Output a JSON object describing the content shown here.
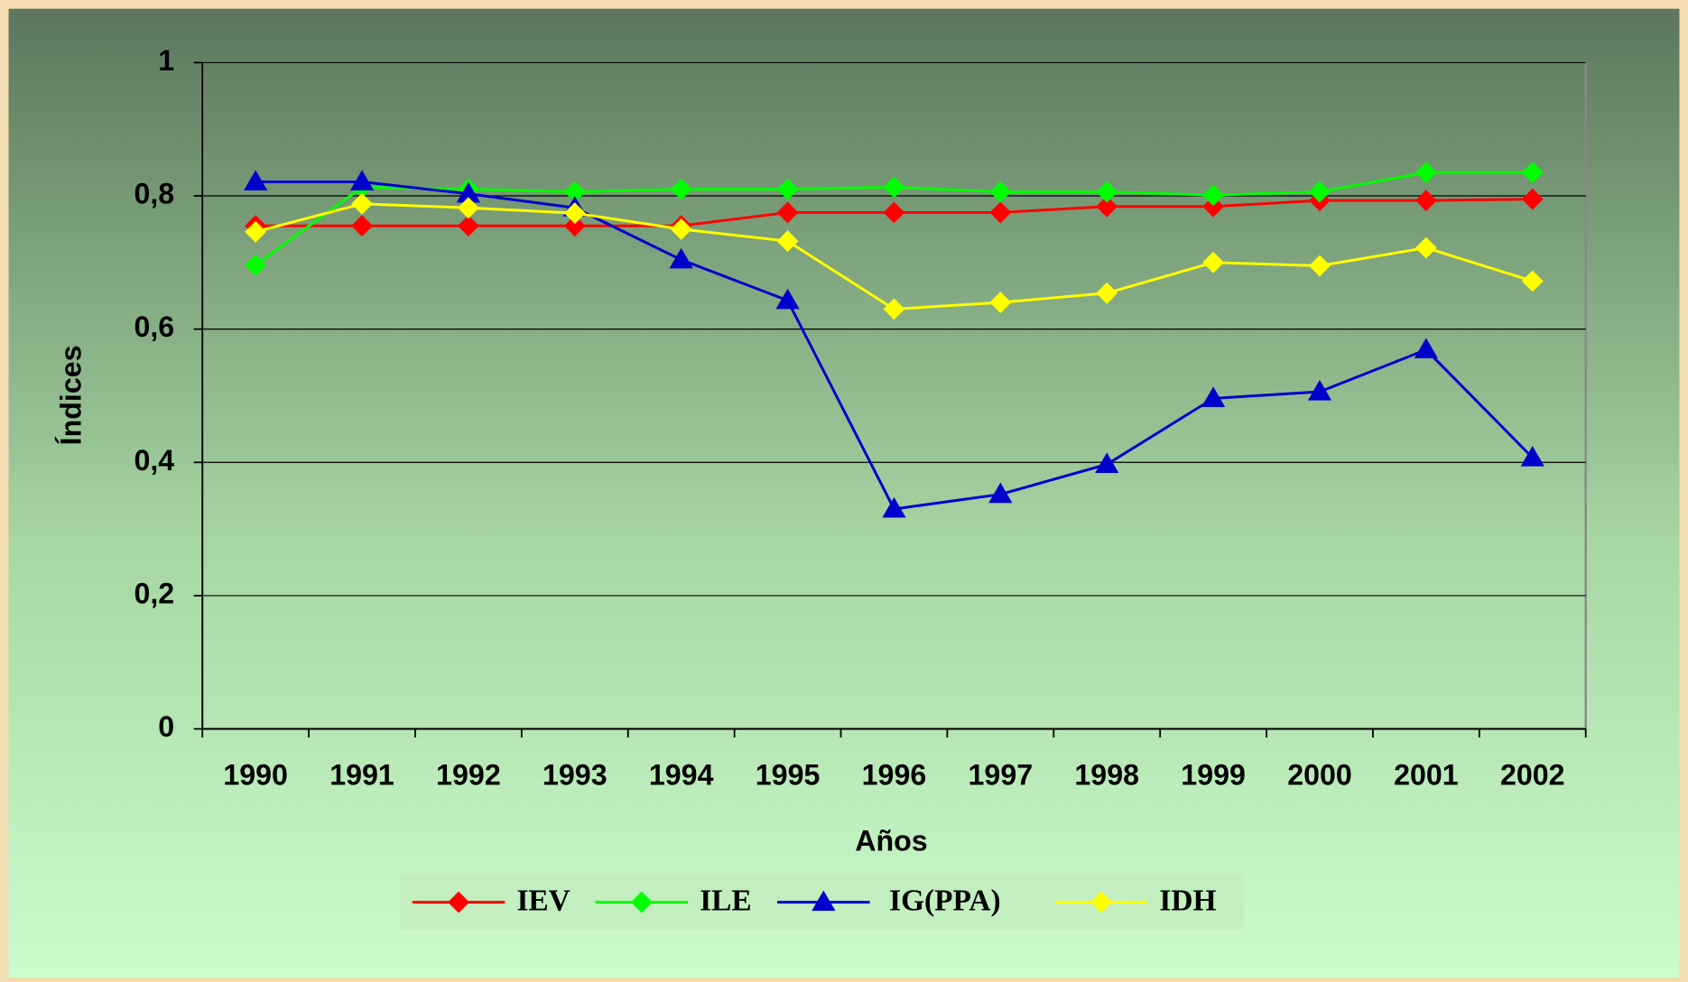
{
  "chart_data": {
    "type": "line",
    "x_label": "Años",
    "y_label": "Índices",
    "categories": [
      "1990",
      "1991",
      "1992",
      "1993",
      "1994",
      "1995",
      "1996",
      "1997",
      "1998",
      "1999",
      "2000",
      "2001",
      "2002"
    ],
    "ylim": [
      0,
      1
    ],
    "yticks": [
      0,
      {
        "value": 0.2,
        "label": "0,2"
      },
      {
        "value": 0.4,
        "label": "0,4"
      },
      {
        "value": 0.6,
        "label": "0,6"
      },
      {
        "value": 0.8,
        "label": "0,8"
      },
      1
    ],
    "grid": true,
    "legend": "bottom",
    "series": [
      {
        "name": "IEV",
        "color": "#ff0000",
        "marker": "diamond",
        "values": [
          0.755,
          0.755,
          0.755,
          0.755,
          0.755,
          0.775,
          0.775,
          0.775,
          0.784,
          0.784,
          0.793,
          0.793,
          0.795
        ]
      },
      {
        "name": "ILE",
        "color": "#00ff00",
        "marker": "diamond",
        "values": [
          0.696,
          0.813,
          0.81,
          0.806,
          0.81,
          0.81,
          0.813,
          0.806,
          0.806,
          0.801,
          0.806,
          0.835,
          0.835
        ]
      },
      {
        "name": "IG(PPA)",
        "color": "#0000cc",
        "marker": "triangle",
        "values": [
          0.821,
          0.821,
          0.803,
          0.782,
          0.704,
          0.643,
          0.33,
          0.352,
          0.397,
          0.496,
          0.506,
          0.569,
          0.407
        ]
      },
      {
        "name": "IDH",
        "color": "#ffff00",
        "marker": "diamond",
        "values": [
          0.746,
          0.788,
          0.782,
          0.774,
          0.75,
          0.732,
          0.63,
          0.64,
          0.654,
          0.7,
          0.695,
          0.722,
          0.672
        ]
      }
    ]
  }
}
